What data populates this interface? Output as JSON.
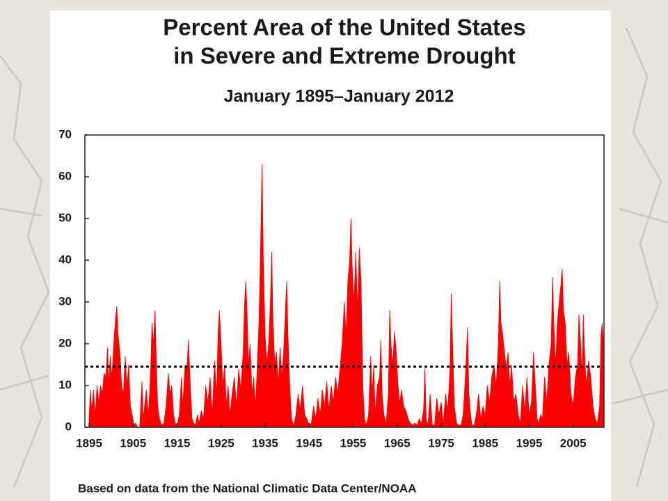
{
  "chart_data": {
    "type": "area",
    "title": [
      "Percent Area of the United States",
      "in Severe and Extreme Drought"
    ],
    "subtitle": "January 1895–January 2012",
    "source": "Based on data from the National Climatic Data Center/NOAA",
    "color": "#ff0000",
    "average_line": 14.5,
    "xlim": [
      1895,
      2012
    ],
    "xticks": [
      1895,
      1905,
      1915,
      1925,
      1935,
      1945,
      1955,
      1965,
      1975,
      1985,
      1995,
      2005
    ],
    "ylim": [
      0,
      70
    ],
    "yticks": [
      0,
      10,
      20,
      30,
      40,
      50,
      60,
      70
    ],
    "x": [
      1895.0,
      1895.3,
      1895.6,
      1896.0,
      1896.4,
      1896.8,
      1897.2,
      1897.6,
      1898.0,
      1898.4,
      1898.8,
      1899.2,
      1899.5,
      1899.8,
      1900.2,
      1900.6,
      1901.0,
      1901.3,
      1901.6,
      1902.0,
      1902.4,
      1902.8,
      1903.2,
      1903.6,
      1904.0,
      1904.4,
      1904.8,
      1905.2,
      1905.6,
      1906.0,
      1906.5,
      1907.0,
      1907.3,
      1908.0,
      1908.5,
      1909.0,
      1909.3,
      1909.6,
      1910.0,
      1910.3,
      1910.6,
      1911.0,
      1911.5,
      1912.0,
      1912.5,
      1913.0,
      1913.4,
      1913.8,
      1914.2,
      1914.6,
      1915.0,
      1915.5,
      1916.0,
      1916.3,
      1916.8,
      1917.2,
      1917.6,
      1918.0,
      1918.4,
      1918.8,
      1919.2,
      1919.6,
      1920.0,
      1920.5,
      1921.0,
      1921.5,
      1922.0,
      1922.5,
      1923.0,
      1923.5,
      1924.0,
      1924.3,
      1924.6,
      1925.0,
      1925.4,
      1925.8,
      1926.2,
      1926.6,
      1927.0,
      1927.5,
      1928.0,
      1928.5,
      1929.0,
      1929.5,
      1930.0,
      1930.3,
      1930.6,
      1930.9,
      1931.2,
      1931.6,
      1932.0,
      1932.4,
      1932.8,
      1933.2,
      1933.6,
      1934.0,
      1934.3,
      1934.6,
      1935.0,
      1935.4,
      1935.8,
      1936.2,
      1936.5,
      1936.8,
      1937.2,
      1937.6,
      1938.0,
      1938.4,
      1938.8,
      1939.2,
      1939.6,
      1939.9,
      1940.2,
      1940.6,
      1941.0,
      1941.5,
      1942.0,
      1942.5,
      1943.0,
      1943.5,
      1944.0,
      1944.5,
      1945.0,
      1945.5,
      1946.0,
      1946.5,
      1947.0,
      1947.5,
      1948.0,
      1948.5,
      1949.0,
      1949.5,
      1950.0,
      1950.5,
      1951.0,
      1951.5,
      1952.0,
      1952.5,
      1953.0,
      1953.4,
      1953.8,
      1954.2,
      1954.5,
      1954.8,
      1955.2,
      1955.6,
      1956.0,
      1956.4,
      1956.8,
      1957.2,
      1957.6,
      1958.0,
      1958.5,
      1959.0,
      1959.3,
      1959.7,
      1960.0,
      1960.5,
      1961.0,
      1961.3,
      1961.6,
      1962.0,
      1962.5,
      1963.0,
      1963.3,
      1963.6,
      1964.0,
      1964.4,
      1964.8,
      1965.2,
      1965.6,
      1966.0,
      1966.5,
      1967.0,
      1967.5,
      1968.0,
      1968.5,
      1969.0,
      1969.5,
      1970.0,
      1970.5,
      1971.0,
      1971.3,
      1971.6,
      1972.0,
      1972.5,
      1973.0,
      1973.5,
      1974.0,
      1974.5,
      1975.0,
      1975.5,
      1976.0,
      1976.5,
      1977.0,
      1977.3,
      1977.6,
      1978.0,
      1978.5,
      1979.0,
      1979.5,
      1980.0,
      1980.5,
      1981.0,
      1981.3,
      1981.7,
      1982.0,
      1982.5,
      1983.0,
      1983.5,
      1984.0,
      1984.5,
      1985.0,
      1985.5,
      1986.0,
      1986.5,
      1987.0,
      1987.5,
      1988.0,
      1988.3,
      1988.6,
      1989.0,
      1989.4,
      1989.8,
      1990.2,
      1990.6,
      1991.0,
      1991.5,
      1992.0,
      1992.5,
      1993.0,
      1993.5,
      1994.0,
      1994.5,
      1995.0,
      1995.5,
      1996.0,
      1996.4,
      1996.8,
      1997.2,
      1997.6,
      1998.0,
      1998.5,
      1999.0,
      1999.5,
      2000.0,
      2000.3,
      2000.6,
      2001.0,
      2001.4,
      2001.8,
      2002.2,
      2002.5,
      2002.8,
      2003.2,
      2003.6,
      2004.0,
      2004.5,
      2005.0,
      2005.5,
      2006.0,
      2006.3,
      2006.7,
      2007.0,
      2007.3,
      2007.7,
      2008.0,
      2008.5,
      2009.0,
      2009.5,
      2010.0,
      2010.5,
      2011.0,
      2011.3,
      2011.6,
      2012.0
    ],
    "values": [
      2,
      9,
      4,
      9,
      3,
      10,
      6,
      10,
      8,
      13,
      12,
      19,
      10,
      17,
      12,
      20,
      26,
      29,
      22,
      18,
      10,
      8,
      17,
      10,
      15,
      5,
      3,
      0.5,
      1,
      0,
      0,
      11,
      2,
      9,
      3,
      14,
      25,
      20,
      28,
      15,
      5,
      2,
      0.5,
      1,
      5,
      13,
      8,
      10,
      3,
      1,
      0.5,
      3,
      12,
      5,
      15,
      14,
      21,
      10,
      2,
      1,
      0.5,
      3,
      1,
      4,
      2,
      10,
      6,
      12,
      3,
      16,
      8,
      22,
      28,
      20,
      10,
      15,
      5,
      10,
      3,
      8,
      12,
      5,
      14,
      9,
      18,
      29,
      35,
      28,
      15,
      20,
      8,
      12,
      5,
      14,
      25,
      45,
      63,
      40,
      22,
      15,
      20,
      30,
      42,
      25,
      15,
      18,
      10,
      19,
      12,
      18,
      28,
      35,
      22,
      10,
      2,
      0.5,
      3,
      8,
      4,
      10,
      3,
      2,
      0.5,
      1,
      5,
      2,
      7,
      3,
      9,
      5,
      11,
      4,
      10,
      6,
      12,
      8,
      14,
      20,
      30,
      22,
      35,
      40,
      50,
      38,
      30,
      42,
      28,
      43,
      35,
      10,
      2,
      0.5,
      3,
      17,
      8,
      15,
      3,
      10,
      12,
      21,
      8,
      3,
      1,
      8,
      28,
      20,
      15,
      23,
      18,
      10,
      6,
      9,
      5,
      4,
      2,
      1,
      0.5,
      1,
      0.5,
      2,
      1,
      4,
      14,
      2,
      0.5,
      8,
      0.5,
      0.5,
      7,
      3,
      6,
      1,
      8,
      4,
      14,
      32,
      20,
      5,
      1,
      0.5,
      0.5,
      3,
      12,
      24,
      8,
      3,
      0.5,
      0.5,
      3,
      8,
      2,
      5,
      3,
      10,
      6,
      12,
      15,
      10,
      20,
      35,
      25,
      22,
      18,
      14,
      18,
      10,
      15,
      6,
      8,
      3,
      1,
      10,
      4,
      12,
      3,
      6,
      18,
      10,
      2,
      1,
      3,
      2,
      12,
      6,
      15,
      20,
      36,
      25,
      15,
      25,
      30,
      34,
      38,
      28,
      25,
      15,
      18,
      8,
      5,
      12,
      15,
      27,
      20,
      12,
      27,
      15,
      10,
      16,
      12,
      5,
      2,
      1,
      5,
      22,
      25,
      18
    ]
  }
}
